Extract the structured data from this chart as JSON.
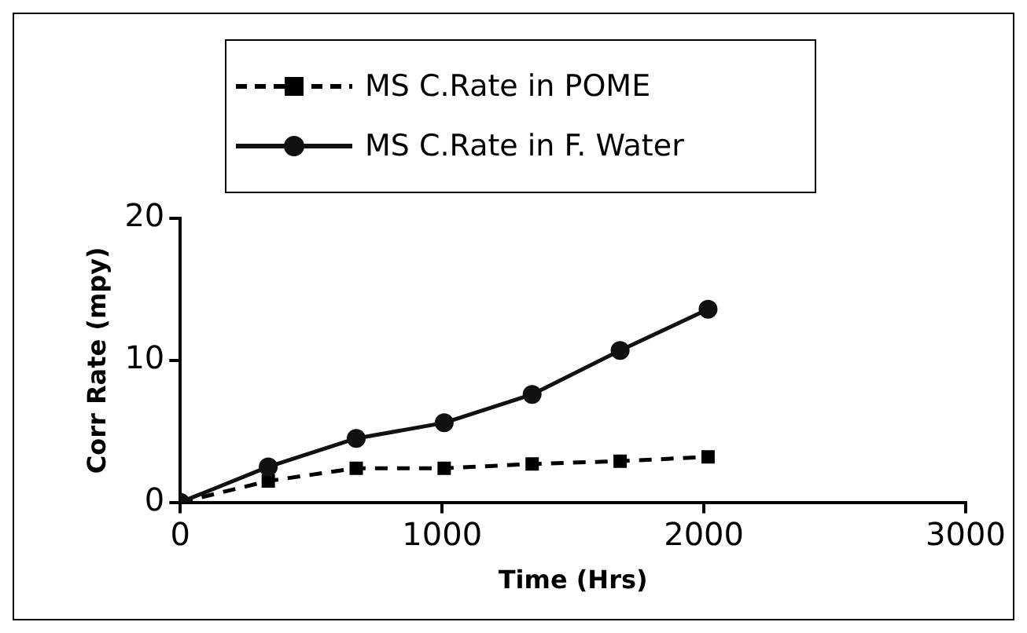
{
  "chart_data": {
    "type": "line",
    "xlabel": "Time (Hrs)",
    "ylabel": "Corr Rate (mpy)",
    "x": [
      0,
      336,
      672,
      1008,
      1344,
      1680,
      2016
    ],
    "series": [
      {
        "name": "MS C.Rate in POME",
        "color": "#000000",
        "values": [
          0,
          1.5,
          2.4,
          2.4,
          2.7,
          2.9,
          3.2
        ],
        "marker": "square",
        "line_style": "dashed"
      },
      {
        "name": "MS C.Rate in F. Water",
        "color": "#111111",
        "values": [
          0,
          2.5,
          4.5,
          5.6,
          7.6,
          10.7,
          13.6
        ],
        "marker": "circle",
        "line_style": "solid"
      }
    ],
    "xlim": [
      0,
      3000
    ],
    "xticks": [
      0,
      1000,
      2000,
      3000
    ],
    "ylim": [
      0,
      20
    ],
    "yticks": [
      0,
      10,
      20
    ],
    "grid": false,
    "legend": "top"
  }
}
